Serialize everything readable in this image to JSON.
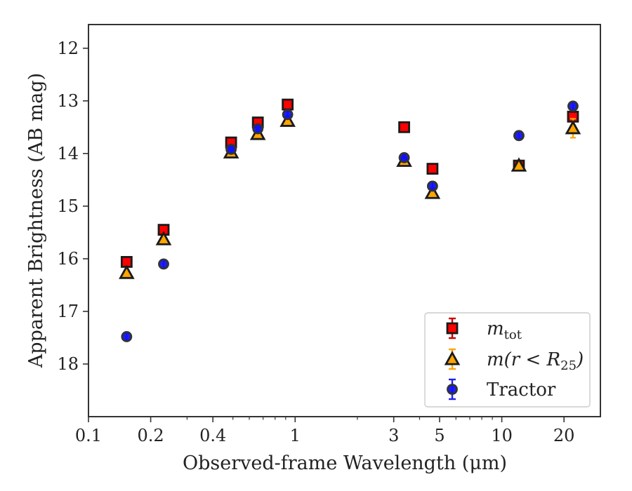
{
  "chart_data": {
    "type": "scatter",
    "xlabel": "Observed-frame Wavelength (μm)",
    "ylabel": "Apparent Brightness (AB mag)",
    "xscale": "log",
    "xlim": [
      0.1,
      30
    ],
    "ylim": [
      19.0,
      11.55
    ],
    "y_inverted": true,
    "xticks": [
      {
        "value": 0.1,
        "label": "0.1"
      },
      {
        "value": 0.2,
        "label": "0.2"
      },
      {
        "value": 0.4,
        "label": "0.4"
      },
      {
        "value": 1,
        "label": "1"
      },
      {
        "value": 3,
        "label": "3"
      },
      {
        "value": 5,
        "label": "5"
      },
      {
        "value": 10,
        "label": "10"
      },
      {
        "value": 20,
        "label": "20"
      }
    ],
    "yticks": [
      {
        "value": 12,
        "label": "12"
      },
      {
        "value": 13,
        "label": "13"
      },
      {
        "value": 14,
        "label": "14"
      },
      {
        "value": 15,
        "label": "15"
      },
      {
        "value": 16,
        "label": "16"
      },
      {
        "value": 17,
        "label": "17"
      },
      {
        "value": 18,
        "label": "18"
      }
    ],
    "grid": false,
    "legend_position": "lower right",
    "series": [
      {
        "name": "m_tot",
        "label_main": "m",
        "label_sub": "tot",
        "marker": "square",
        "color": "#ff0000",
        "edge_color": "#1a1a1a",
        "error_color": "#cc0000",
        "points": [
          {
            "x": 0.153,
            "y": 16.06
          },
          {
            "x": 0.231,
            "y": 15.45
          },
          {
            "x": 0.49,
            "y": 13.79
          },
          {
            "x": 0.66,
            "y": 13.41
          },
          {
            "x": 0.92,
            "y": 13.07
          },
          {
            "x": 3.37,
            "y": 13.5
          },
          {
            "x": 4.62,
            "y": 14.29
          },
          {
            "x": 12.1,
            "y": 14.23
          },
          {
            "x": 22.1,
            "y": 13.3
          }
        ]
      },
      {
        "name": "m(r < R25)",
        "label_main": "m(r < R",
        "label_sub": "25",
        "label_end": ")",
        "marker": "triangle",
        "color": "#ffa500",
        "edge_color": "#1a1a1a",
        "error_color": "#ffa500",
        "points": [
          {
            "x": 0.153,
            "y": 16.27
          },
          {
            "x": 0.231,
            "y": 15.63
          },
          {
            "x": 0.49,
            "y": 13.98
          },
          {
            "x": 0.66,
            "y": 13.63
          },
          {
            "x": 0.92,
            "y": 13.38
          },
          {
            "x": 3.37,
            "y": 14.14
          },
          {
            "x": 4.62,
            "y": 14.75
          },
          {
            "x": 12.1,
            "y": 14.23
          },
          {
            "x": 22.1,
            "y": 13.52,
            "err": 0.18
          }
        ]
      },
      {
        "name": "Tractor",
        "label_main": "Tractor",
        "marker": "circle",
        "color": "#1010ff",
        "edge_color": "#333333",
        "error_color": "#2020ee",
        "points": [
          {
            "x": 0.153,
            "y": 17.48,
            "err": 0.07
          },
          {
            "x": 0.231,
            "y": 16.1,
            "err": 0.07
          },
          {
            "x": 0.49,
            "y": 13.92,
            "err": 0.07
          },
          {
            "x": 0.66,
            "y": 13.53,
            "err": 0.06
          },
          {
            "x": 0.92,
            "y": 13.26,
            "err": 0.06
          },
          {
            "x": 3.37,
            "y": 14.08,
            "err": 0.07
          },
          {
            "x": 4.62,
            "y": 14.62,
            "err": 0.08
          },
          {
            "x": 12.1,
            "y": 13.66,
            "err": 0.08
          },
          {
            "x": 22.1,
            "y": 13.1,
            "err": 0.07
          }
        ]
      }
    ]
  }
}
